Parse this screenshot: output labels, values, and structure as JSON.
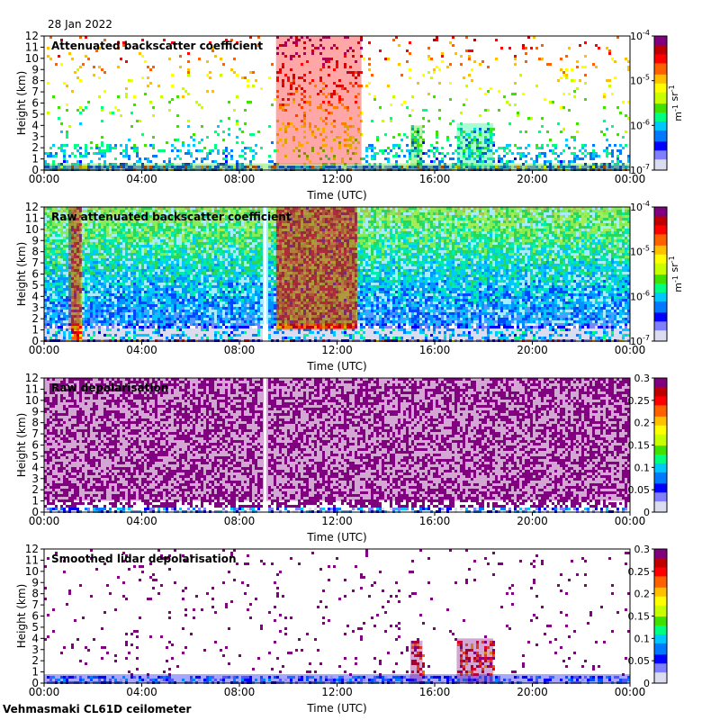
{
  "figure": {
    "date": "28 Jan 2022",
    "footer": "Vehmasmaki CL61D ceilometer"
  },
  "chart_data": [
    {
      "type": "heatmap",
      "title": "Attenuated backscatter coefficient",
      "xlabel": "Time (UTC)",
      "ylabel": "Height (km)",
      "x_ticks": [
        "00:00",
        "04:00",
        "08:00",
        "12:00",
        "16:00",
        "20:00",
        "00:00"
      ],
      "xlim": [
        0,
        24
      ],
      "y_ticks": [
        "0",
        "1",
        "2",
        "3",
        "4",
        "5",
        "6",
        "7",
        "8",
        "9",
        "10",
        "11",
        "12"
      ],
      "ylim": [
        0,
        12
      ],
      "scale": "log",
      "colorbar": {
        "ticks": [
          "10-4",
          "10-5",
          "10-6",
          "10-7"
        ],
        "label": "m-1 sr-1",
        "range": [
          1e-07,
          0.0001
        ]
      },
      "features": [
        {
          "name": "Low aerosol layer",
          "x_range": [
            0,
            24
          ],
          "height_km": [
            0,
            0.6
          ],
          "value": 2e-06
        },
        {
          "name": "Sparse high signal",
          "x_range": [
            9.5,
            13
          ],
          "height_km": [
            0.5,
            12
          ],
          "value": 3e-05
        },
        {
          "name": "Precipitation shaft",
          "x_range": [
            15,
            15.5
          ],
          "height_km": [
            0.3,
            4
          ],
          "value": 2e-06
        },
        {
          "name": "Precipitation shaft",
          "x_range": [
            16.9,
            18.4
          ],
          "height_km": [
            0.3,
            4.2
          ],
          "value": 1.5e-06
        }
      ]
    },
    {
      "type": "heatmap",
      "title": "Raw attenuated backscatter coefficient",
      "xlabel": "Time (UTC)",
      "ylabel": "Height (km)",
      "x_ticks": [
        "00:00",
        "04:00",
        "08:00",
        "12:00",
        "16:00",
        "20:00",
        "00:00"
      ],
      "xlim": [
        0,
        24
      ],
      "y_ticks": [
        "0",
        "1",
        "2",
        "3",
        "4",
        "5",
        "6",
        "7",
        "8",
        "9",
        "10",
        "11",
        "12"
      ],
      "ylim": [
        0,
        12
      ],
      "scale": "log",
      "colorbar": {
        "ticks": [
          "10-4",
          "10-5",
          "10-6",
          "10-7"
        ],
        "label": "m-1 sr-1",
        "range": [
          1e-07,
          0.0001
        ]
      },
      "features": [
        {
          "name": "Noise floor increasing with height",
          "x_range": [
            0,
            24
          ],
          "height_km": [
            1.5,
            12
          ],
          "value": 1e-06
        },
        {
          "name": "High-noise column",
          "x_range": [
            1.0,
            1.5
          ],
          "height_km": [
            1,
            12
          ],
          "value": 5e-05
        },
        {
          "name": "High-noise block",
          "x_range": [
            9.5,
            12.8
          ],
          "height_km": [
            1,
            12
          ],
          "value": 4e-05
        },
        {
          "name": "Data gap",
          "x_range": [
            9.0,
            9.1
          ],
          "height_km": [
            0,
            12
          ],
          "value": null
        }
      ]
    },
    {
      "type": "heatmap",
      "title": "Raw depolarisation",
      "xlabel": "Time (UTC)",
      "ylabel": "Height (km)",
      "x_ticks": [
        "00:00",
        "04:00",
        "08:00",
        "12:00",
        "16:00",
        "20:00",
        "00:00"
      ],
      "xlim": [
        0,
        24
      ],
      "y_ticks": [
        "0",
        "1",
        "2",
        "3",
        "4",
        "5",
        "6",
        "7",
        "8",
        "9",
        "10",
        "11",
        "12"
      ],
      "ylim": [
        0,
        12
      ],
      "scale": "linear",
      "colorbar": {
        "ticks": [
          "0.3",
          "0.25",
          "0.2",
          "0.15",
          "0.1",
          "0.05",
          "0"
        ],
        "range": [
          0,
          0.3
        ]
      },
      "features": [
        {
          "name": "Noise-dominated depolarisation",
          "x_range": [
            0,
            24
          ],
          "height_km": [
            1,
            12
          ],
          "value": 0.3
        },
        {
          "name": "Data gap",
          "x_range": [
            9.0,
            9.1
          ],
          "height_km": [
            0,
            12
          ],
          "value": null
        }
      ]
    },
    {
      "type": "heatmap",
      "title": "Smoothed lidar depolarisation",
      "xlabel": "Time (UTC)",
      "ylabel": "Height (km)",
      "x_ticks": [
        "00:00",
        "04:00",
        "08:00",
        "12:00",
        "16:00",
        "20:00",
        "00:00"
      ],
      "xlim": [
        0,
        24
      ],
      "y_ticks": [
        "0",
        "1",
        "2",
        "3",
        "4",
        "5",
        "6",
        "7",
        "8",
        "9",
        "10",
        "11",
        "12"
      ],
      "ylim": [
        0,
        12
      ],
      "scale": "linear",
      "colorbar": {
        "ticks": [
          "0.3",
          "0.25",
          "0.2",
          "0.15",
          "0.1",
          "0.05",
          "0"
        ],
        "range": [
          0,
          0.3
        ]
      },
      "features": [
        {
          "name": "Low-level depolarisation",
          "x_range": [
            0,
            24
          ],
          "height_km": [
            0,
            0.8
          ],
          "value": 0.05
        },
        {
          "name": "Precipitation shaft",
          "x_range": [
            15,
            15.5
          ],
          "height_km": [
            0,
            3.8
          ],
          "value": 0.28
        },
        {
          "name": "Precipitation shaft",
          "x_range": [
            16.9,
            18.4
          ],
          "height_km": [
            0,
            4
          ],
          "value": 0.3
        }
      ]
    }
  ]
}
